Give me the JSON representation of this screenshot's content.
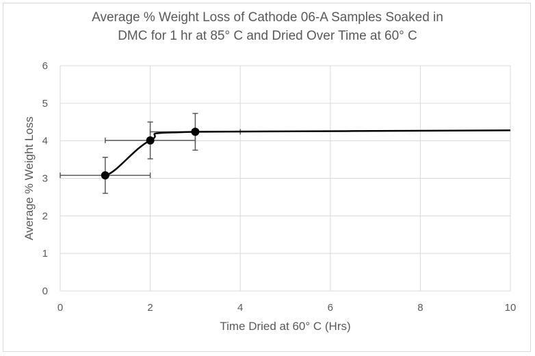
{
  "chart_data": {
    "type": "scatter",
    "title_line1": "Average % Weight Loss of Cathode 06-A Samples Soaked in",
    "title_line2": "DMC for 1 hr at 85° C and Dried Over Time at 60° C",
    "xlabel": "Time Dried at 60° C (Hrs)",
    "ylabel": "Average % Weight Loss",
    "xlim": [
      0,
      10
    ],
    "ylim": [
      0,
      6
    ],
    "x_ticks": [
      0,
      2,
      4,
      6,
      8,
      10
    ],
    "y_ticks": [
      0,
      1,
      2,
      3,
      4,
      5,
      6
    ],
    "grid": true,
    "line_style": "smooth",
    "series": [
      {
        "points": [
          {
            "x": 1,
            "y": 3.08,
            "y_err": 0.48,
            "x_err": 1
          },
          {
            "x": 2,
            "y": 4.01,
            "y_err": 0.49,
            "x_err": 1
          },
          {
            "x": 3,
            "y": 4.24,
            "y_err": 0.49,
            "x_err": 1
          }
        ],
        "trend_end": {
          "x": 10,
          "y": 4.28
        }
      }
    ],
    "colors": {
      "line": "#000000",
      "grid": "#d9d9d9",
      "error_bar": "#595959",
      "text": "#595959"
    }
  }
}
